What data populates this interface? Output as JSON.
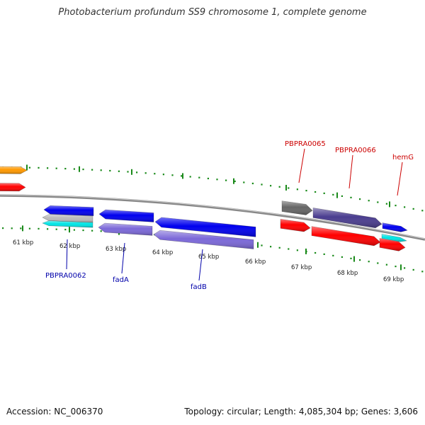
{
  "title": "Photobacterium profundum SS9 chromosome 1, complete genome",
  "footer": {
    "accession": "Accession: NC_006370",
    "summary": "Topology: circular; Length: 4,085,304 bp; Genes: 3,606"
  },
  "colors": {
    "backbone": "#888888",
    "tick": "#1a8a1a",
    "label_forward": "#cc0000",
    "label_reverse": "#0000aa"
  },
  "ticks": [
    {
      "label": "61 kbp"
    },
    {
      "label": "62 kbp"
    },
    {
      "label": "63 kbp"
    },
    {
      "label": "64 kbp"
    },
    {
      "label": "65 kbp"
    },
    {
      "label": "66 kbp"
    },
    {
      "label": "67 kbp"
    },
    {
      "label": "68 kbp"
    },
    {
      "label": "69 kbp"
    }
  ],
  "genes": [
    {
      "id": "orange-fwd",
      "strand": "+",
      "color": "#ff9900"
    },
    {
      "id": "red-fwd-left",
      "strand": "+",
      "color": "#ff0000"
    },
    {
      "id": "PBPRA0062",
      "strand": "-",
      "color": "#0000ee",
      "label": "PBPRA0062"
    },
    {
      "id": "fadA",
      "strand": "-",
      "color": "#0000ee",
      "label": "fadA"
    },
    {
      "id": "fadB",
      "strand": "-",
      "color": "#0000ee",
      "label": "fadB"
    },
    {
      "id": "cog-62-grey",
      "strand": "-",
      "color": "#bbbbbb"
    },
    {
      "id": "cog-62-cyan",
      "strand": "-",
      "color": "#00e5e5"
    },
    {
      "id": "cog-63-purple",
      "strand": "-",
      "color": "#7b68d8"
    },
    {
      "id": "cog-65-purple",
      "strand": "-",
      "color": "#7b68d8"
    },
    {
      "id": "PBPRA0065",
      "strand": "+",
      "color": "#666666",
      "label": "PBPRA0065"
    },
    {
      "id": "PBPRA0066",
      "strand": "+",
      "color": "#4a3d8f",
      "label": "PBPRA0066"
    },
    {
      "id": "hemG",
      "strand": "+",
      "color": "#0000ee",
      "label": "hemG"
    },
    {
      "id": "red-fwd-67",
      "strand": "+",
      "color": "#ff0000"
    },
    {
      "id": "red-fwd-68",
      "strand": "+",
      "color": "#ff0000"
    },
    {
      "id": "cyan-fwd-69",
      "strand": "+",
      "color": "#00e5e5"
    },
    {
      "id": "red-fwd-69",
      "strand": "+",
      "color": "#ff0000"
    }
  ]
}
